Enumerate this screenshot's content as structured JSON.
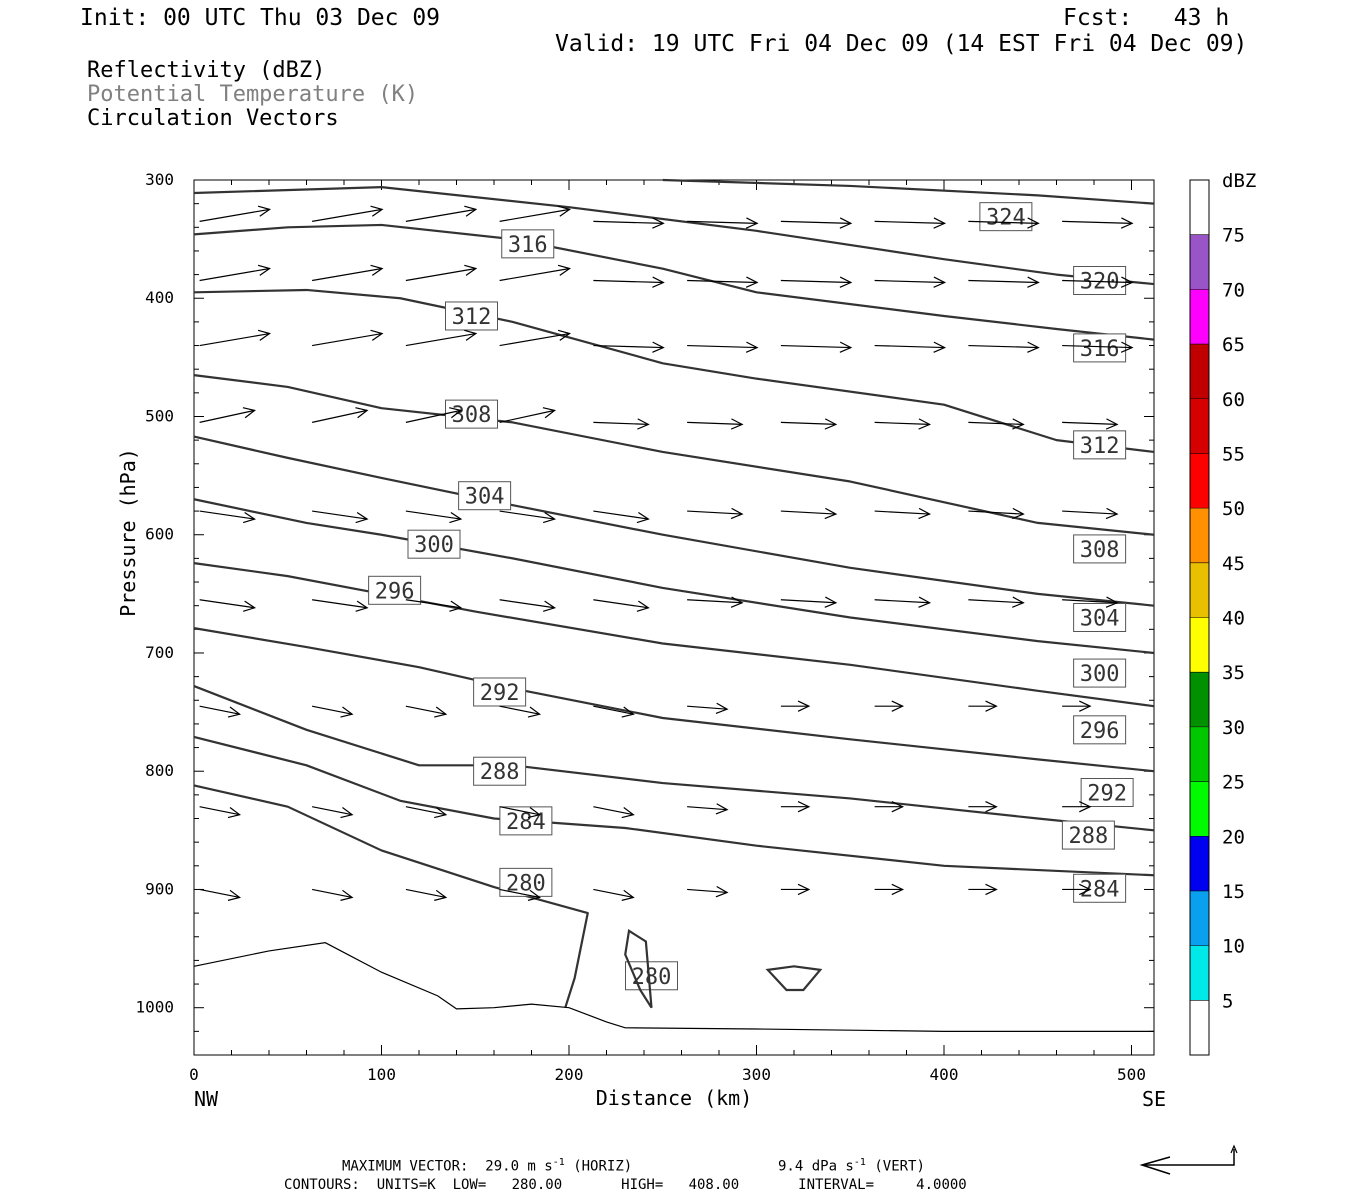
{
  "header": {
    "init": "Init: 00 UTC Thu 03 Dec 09",
    "fcst": "Fcst:   43 h",
    "valid": "Valid: 19 UTC Fri 04 Dec 09 (14 EST Fri 04 Dec 09)"
  },
  "fields": {
    "reflectivity": "Reflectivity (dBZ)",
    "potential_temperature": "Potential Temperature (K)",
    "circulation": "Circulation Vectors"
  },
  "footer": {
    "max_vector": "MAXIMUM VECTOR:  29.0 m s",
    "horiz": "(HORIZ)",
    "vert_value": "9.4 dPa s",
    "vert": "(VERT)",
    "contours": "CONTOURS:  UNITS=K  LOW=   280.00       HIGH=   408.00       INTERVAL=     4.0000"
  },
  "colors": {
    "contour": "#333333",
    "vector": "#000000"
  },
  "chart_data": {
    "type": "cross-section",
    "xlabel": "Distance (km)",
    "ylabel": "Pressure (hPa)",
    "xlim": [
      0,
      512
    ],
    "ylim": [
      300,
      1040
    ],
    "x_ticks": [
      0,
      100,
      200,
      300,
      400,
      500
    ],
    "y_ticks": [
      300,
      400,
      500,
      600,
      700,
      800,
      900,
      1000
    ],
    "x_end_labels": {
      "left": "NW",
      "right": "SE"
    },
    "colorbar": {
      "unit": "dBZ",
      "levels": [
        5,
        10,
        15,
        20,
        25,
        30,
        35,
        40,
        45,
        50,
        55,
        60,
        65,
        70,
        75
      ],
      "colors": [
        "#00e8e8",
        "#0aa0f0",
        "#0000f0",
        "#00fa00",
        "#00c800",
        "#009000",
        "#ffff00",
        "#e8c000",
        "#ff9000",
        "#ff0000",
        "#d60000",
        "#c00000",
        "#ff00ff",
        "#9955c8",
        "#ffffff"
      ]
    },
    "contours": [
      {
        "label": "324",
        "points": [
          [
            250,
            300
          ],
          [
            350,
            305
          ],
          [
            450,
            313
          ],
          [
            512,
            320
          ]
        ],
        "labels_at": [
          [
            433,
            331
          ]
        ]
      },
      {
        "label": "320",
        "points": [
          [
            0,
            311
          ],
          [
            100,
            306
          ],
          [
            200,
            323
          ],
          [
            300,
            343
          ],
          [
            400,
            367
          ],
          [
            460,
            380
          ],
          [
            512,
            388
          ]
        ],
        "labels_at": [
          [
            483,
            385
          ]
        ]
      },
      {
        "label": "316",
        "points": [
          [
            0,
            346
          ],
          [
            50,
            340
          ],
          [
            100,
            338
          ],
          [
            170,
            350
          ],
          [
            250,
            375
          ],
          [
            300,
            395
          ],
          [
            400,
            415
          ],
          [
            460,
            426
          ],
          [
            512,
            435
          ]
        ],
        "labels_at": [
          [
            178,
            354
          ],
          [
            483,
            442
          ]
        ]
      },
      {
        "label": "312",
        "points": [
          [
            0,
            395
          ],
          [
            60,
            393
          ],
          [
            110,
            400
          ],
          [
            170,
            420
          ],
          [
            250,
            455
          ],
          [
            300,
            468
          ],
          [
            400,
            490
          ],
          [
            460,
            520
          ],
          [
            512,
            530
          ]
        ],
        "labels_at": [
          [
            148,
            415
          ],
          [
            483,
            524
          ]
        ]
      },
      {
        "label": "308",
        "points": [
          [
            0,
            465
          ],
          [
            50,
            475
          ],
          [
            100,
            493
          ],
          [
            170,
            505
          ],
          [
            250,
            530
          ],
          [
            350,
            555
          ],
          [
            450,
            590
          ],
          [
            512,
            600
          ]
        ],
        "labels_at": [
          [
            148,
            498
          ],
          [
            483,
            612
          ]
        ]
      },
      {
        "label": "304",
        "points": [
          [
            0,
            517
          ],
          [
            50,
            535
          ],
          [
            100,
            552
          ],
          [
            170,
            575
          ],
          [
            250,
            600
          ],
          [
            350,
            628
          ],
          [
            450,
            650
          ],
          [
            512,
            660
          ]
        ],
        "labels_at": [
          [
            155,
            567
          ],
          [
            483,
            670
          ]
        ]
      },
      {
        "label": "300",
        "points": [
          [
            0,
            570
          ],
          [
            60,
            590
          ],
          [
            100,
            600
          ],
          [
            170,
            620
          ],
          [
            250,
            645
          ],
          [
            350,
            670
          ],
          [
            450,
            690
          ],
          [
            512,
            700
          ]
        ],
        "labels_at": [
          [
            128,
            608
          ],
          [
            483,
            717
          ]
        ]
      },
      {
        "label": "296",
        "points": [
          [
            0,
            624
          ],
          [
            50,
            635
          ],
          [
            100,
            650
          ],
          [
            150,
            665
          ],
          [
            250,
            692
          ],
          [
            350,
            710
          ],
          [
            450,
            732
          ],
          [
            512,
            745
          ]
        ],
        "labels_at": [
          [
            107,
            647
          ],
          [
            483,
            765
          ]
        ]
      },
      {
        "label": "292",
        "points": [
          [
            0,
            679
          ],
          [
            60,
            695
          ],
          [
            120,
            712
          ],
          [
            170,
            730
          ],
          [
            250,
            755
          ],
          [
            350,
            773
          ],
          [
            450,
            790
          ],
          [
            512,
            800
          ]
        ],
        "labels_at": [
          [
            163,
            733
          ],
          [
            487,
            818
          ]
        ]
      },
      {
        "label": "288",
        "points": [
          [
            0,
            728
          ],
          [
            60,
            765
          ],
          [
            120,
            795
          ],
          [
            170,
            795
          ],
          [
            250,
            810
          ],
          [
            350,
            823
          ],
          [
            450,
            840
          ],
          [
            512,
            850
          ]
        ],
        "labels_at": [
          [
            163,
            800
          ],
          [
            477,
            854
          ]
        ]
      },
      {
        "label": "284",
        "points": [
          [
            0,
            771
          ],
          [
            60,
            795
          ],
          [
            110,
            825
          ],
          [
            160,
            840
          ],
          [
            230,
            848
          ],
          [
            300,
            863
          ],
          [
            400,
            880
          ],
          [
            512,
            888
          ]
        ],
        "labels_at": [
          [
            177,
            842
          ],
          [
            483,
            899
          ]
        ]
      },
      {
        "label": "280",
        "points": [
          [
            0,
            812
          ],
          [
            50,
            830
          ],
          [
            100,
            867
          ],
          [
            160,
            898
          ],
          [
            210,
            920
          ],
          [
            203,
            975
          ],
          [
            198,
            1000
          ]
        ],
        "labels_at": [
          [
            177,
            894
          ],
          [
            244,
            973
          ]
        ]
      }
    ],
    "vectors": {
      "rows_hPa": [
        335,
        385,
        440,
        505,
        580,
        655,
        745,
        830,
        900
      ],
      "x_km": [
        0,
        60,
        110,
        160,
        210,
        260,
        310,
        360,
        410,
        460
      ]
    },
    "ground_pressure_hPa": 1020
  }
}
